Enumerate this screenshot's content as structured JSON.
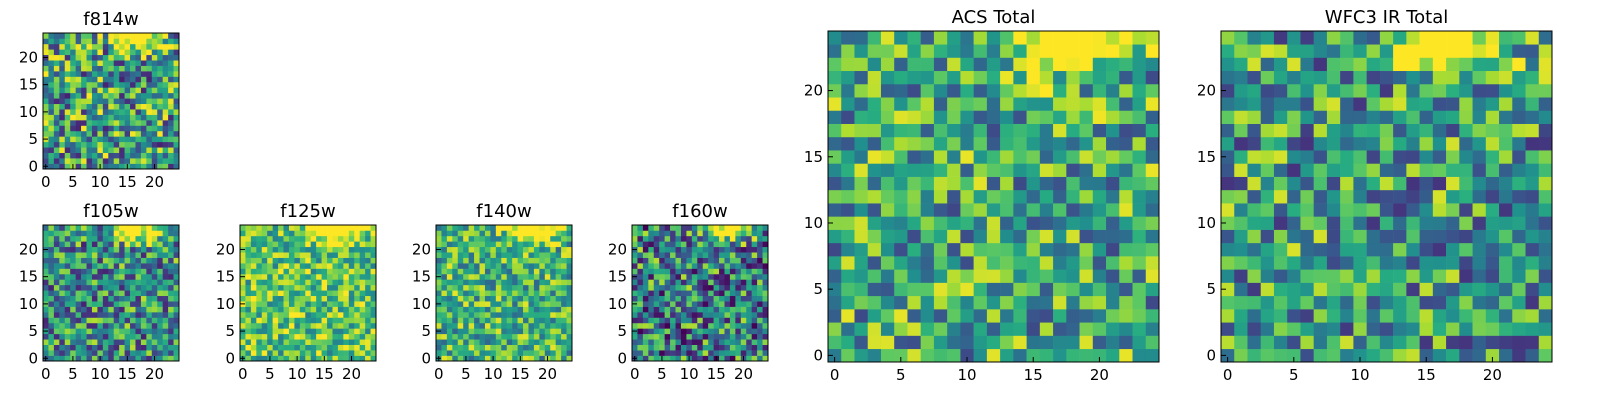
{
  "chart_data": [
    {
      "type": "heatmap",
      "title": "f814w",
      "x_ticks": [
        0,
        5,
        10,
        15,
        20
      ],
      "y_ticks": [
        0,
        5,
        10,
        15,
        20
      ],
      "xlim": [
        0,
        25
      ],
      "ylim": [
        0,
        25
      ],
      "grid": false,
      "colormap": "viridis",
      "bright_region": "top-right"
    },
    {
      "type": "heatmap",
      "title": "f105w",
      "x_ticks": [
        0,
        5,
        10,
        15,
        20
      ],
      "y_ticks": [
        0,
        5,
        10,
        15,
        20
      ],
      "xlim": [
        0,
        25
      ],
      "ylim": [
        0,
        25
      ],
      "grid": false,
      "colormap": "viridis",
      "bright_region": "top-right"
    },
    {
      "type": "heatmap",
      "title": "f125w",
      "x_ticks": [
        0,
        5,
        10,
        15,
        20
      ],
      "y_ticks": [
        0,
        5,
        10,
        15,
        20
      ],
      "xlim": [
        0,
        25
      ],
      "ylim": [
        0,
        25
      ],
      "grid": false,
      "colormap": "viridis",
      "bright_region": "top-right"
    },
    {
      "type": "heatmap",
      "title": "f140w",
      "x_ticks": [
        0,
        5,
        10,
        15,
        20
      ],
      "y_ticks": [
        0,
        5,
        10,
        15,
        20
      ],
      "xlim": [
        0,
        25
      ],
      "ylim": [
        0,
        25
      ],
      "grid": false,
      "colormap": "viridis",
      "bright_region": "top-right"
    },
    {
      "type": "heatmap",
      "title": "f160w",
      "x_ticks": [
        0,
        5,
        10,
        15,
        20
      ],
      "y_ticks": [
        0,
        5,
        10,
        15,
        20
      ],
      "xlim": [
        0,
        25
      ],
      "ylim": [
        0,
        25
      ],
      "grid": false,
      "colormap": "viridis",
      "bright_region": "top-right"
    },
    {
      "type": "heatmap",
      "title": "ACS Total",
      "x_ticks": [
        0,
        5,
        10,
        15,
        20
      ],
      "y_ticks": [
        0,
        5,
        10,
        15,
        20
      ],
      "xlim": [
        0,
        25
      ],
      "ylim": [
        0,
        25
      ],
      "grid": false,
      "colormap": "viridis",
      "bright_region": "top-right"
    },
    {
      "type": "heatmap",
      "title": "WFC3 IR Total",
      "x_ticks": [
        0,
        5,
        10,
        15,
        20
      ],
      "y_ticks": [
        0,
        5,
        10,
        15,
        20
      ],
      "xlim": [
        0,
        25
      ],
      "ylim": [
        0,
        25
      ],
      "grid": false,
      "colormap": "viridis",
      "bright_region": "top-right"
    }
  ]
}
